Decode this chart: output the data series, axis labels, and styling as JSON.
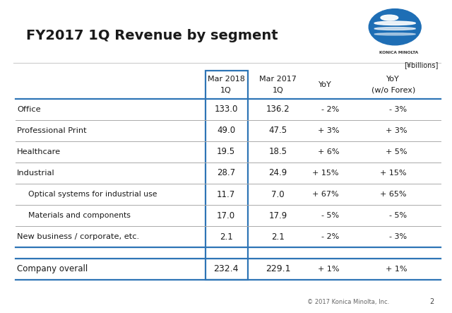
{
  "title": "FY2017 1Q Revenue by segment",
  "units_note": "[¥billions]",
  "footer": "© 2017 Konica Minolta, Inc.",
  "page_num": "2",
  "rows": [
    {
      "label": "Office",
      "indent": false,
      "mar2018": "133.0",
      "mar2017": "136.2",
      "yoy": "- 2%",
      "yoy_forex": "- 3%"
    },
    {
      "label": "Professional Print",
      "indent": false,
      "mar2018": "49.0",
      "mar2017": "47.5",
      "yoy": "+ 3%",
      "yoy_forex": "+ 3%"
    },
    {
      "label": "Healthcare",
      "indent": false,
      "mar2018": "19.5",
      "mar2017": "18.5",
      "yoy": "+ 6%",
      "yoy_forex": "+ 5%"
    },
    {
      "label": "Industrial",
      "indent": false,
      "mar2018": "28.7",
      "mar2017": "24.9",
      "yoy": "+ 15%",
      "yoy_forex": "+ 15%"
    },
    {
      "label": "Optical systems for industrial use",
      "indent": true,
      "mar2018": "11.7",
      "mar2017": "7.0",
      "yoy": "+ 67%",
      "yoy_forex": "+ 65%"
    },
    {
      "label": "Materials and components",
      "indent": true,
      "mar2018": "17.0",
      "mar2017": "17.9",
      "yoy": "- 5%",
      "yoy_forex": "- 5%"
    },
    {
      "label": "New business / corporate, etc.",
      "indent": false,
      "mar2018": "2.1",
      "mar2017": "2.1",
      "yoy": "- 2%",
      "yoy_forex": "- 3%"
    }
  ],
  "total_row": {
    "label": "Company overall",
    "mar2018": "232.4",
    "mar2017": "229.1",
    "yoy": "+ 1%",
    "yoy_forex": "+ 1%"
  },
  "colors": {
    "col1_border": "#2e75b6",
    "yoy_forex_bg": "#d9d9d9",
    "thick_line": "#2e75b6",
    "thin_line": "#aaaaaa",
    "title_color": "#1a1a1a",
    "text_color": "#1a1a1a",
    "left_bar_blue": "#2e75b6",
    "left_bar_gray": "#888888",
    "sep_line": "#cccccc",
    "background": "#ffffff",
    "logo_blue": "#1e6eb5",
    "logo_light": "#7fbde8",
    "logo_white": "#ffffff"
  }
}
